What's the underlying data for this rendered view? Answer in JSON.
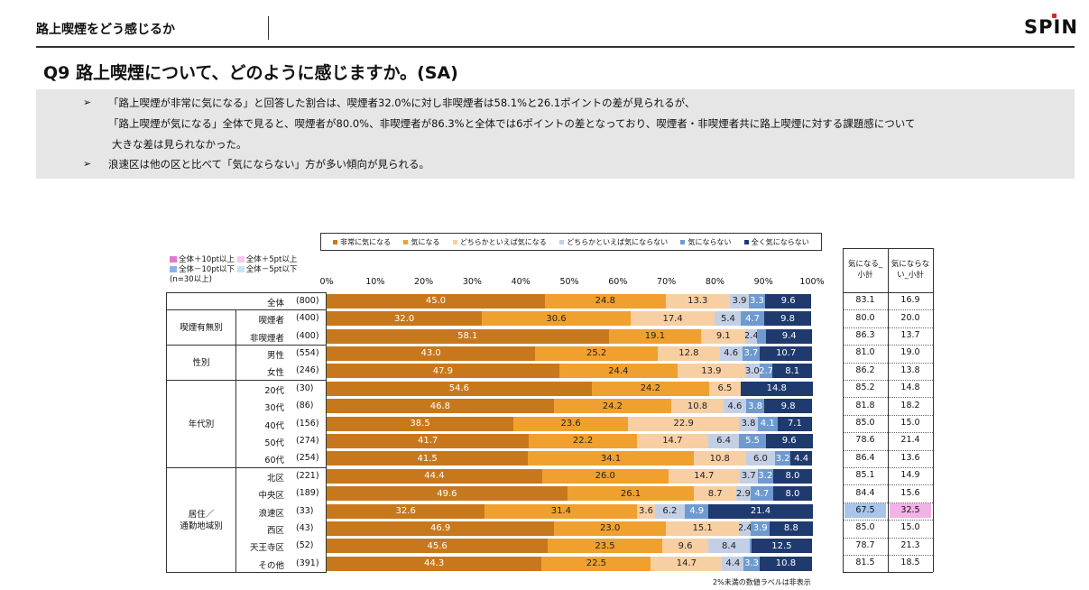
{
  "header": {
    "title": "路上喫煙をどう感じるか",
    "logo": "SPIN"
  },
  "question": "Q9 路上喫煙について、どのように感じますか。(SA)",
  "summary": [
    "「路上喫煙が非常に気になる」と回答した割合は、喫煙者32.0%に対し非喫煙者は58.1%と26.1ポイントの差が見られるが、",
    "「路上喫煙が気になる」全体で見ると、喫煙者が80.0%、非喫煙者が86.3%と全体では6ポイントの差となっており、喫煙者・非喫煙者共に路上喫煙に対する課題感について",
    "大きな差は見られなかった。",
    "浪速区は他の区と比べて「気にならない」方が多い傾向が見られる。"
  ],
  "key": {
    "plus10": "全体＋10pt以上",
    "plus5": "全体＋5pt以上",
    "minus10": "全体－10pt以下",
    "minus5": "全体－5pt以下",
    "note": "(n=30以上)"
  },
  "colors": {
    "c1": "#c8781c",
    "c2": "#f0a02e",
    "c3": "#f8cfa2",
    "c4": "#c3cfe4",
    "c5": "#6e9ad0",
    "c6": "#1f3a6e",
    "hi_blue": "#a9c6ea",
    "hi_pink": "#f3b2e6"
  },
  "subtotal_headers": [
    "気になる_小計",
    "気にならない_小計"
  ],
  "footnote": "2%未満の数値ラベルは非表示",
  "chart_data": {
    "type": "bar",
    "orientation": "horizontal-stacked-100",
    "series_names": [
      "非常に気になる",
      "気になる",
      "どちらかといえば気になる",
      "どちらかといえば気にならない",
      "気にならない",
      "全く気にならない"
    ],
    "x_ticks": [
      "0%",
      "10%",
      "20%",
      "30%",
      "40%",
      "50%",
      "60%",
      "70%",
      "80%",
      "90%",
      "100%"
    ],
    "rows": [
      {
        "group": "",
        "label": "全体",
        "n": "(800)",
        "values": [
          45.0,
          24.8,
          13.3,
          3.9,
          3.3,
          9.6
        ],
        "labels": [
          "45.0",
          "24.8",
          "13.3",
          "3.9",
          "3.3",
          "9.6"
        ],
        "sub": [
          "83.1",
          "16.9"
        ]
      },
      {
        "group": "喫煙有無別",
        "label": "喫煙者",
        "n": "(400)",
        "values": [
          32.0,
          30.6,
          17.4,
          5.4,
          4.7,
          9.8
        ],
        "labels": [
          "32.0",
          "30.6",
          "17.4",
          "5.4",
          "4.7",
          "9.8"
        ],
        "sub": [
          "80.0",
          "20.0"
        ]
      },
      {
        "group": "喫煙有無別",
        "label": "非喫煙者",
        "n": "(400)",
        "values": [
          58.1,
          19.1,
          9.1,
          2.4,
          1.9,
          9.4
        ],
        "labels": [
          "58.1",
          "19.1",
          "9.1",
          "2.4",
          "",
          "9.4"
        ],
        "sub": [
          "86.3",
          "13.7"
        ]
      },
      {
        "group": "性別",
        "label": "男性",
        "n": "(554)",
        "values": [
          43.0,
          25.2,
          12.8,
          4.6,
          3.7,
          10.7
        ],
        "labels": [
          "43.0",
          "25.2",
          "12.8",
          "4.6",
          "3.7",
          "10.7"
        ],
        "sub": [
          "81.0",
          "19.0"
        ]
      },
      {
        "group": "性別",
        "label": "女性",
        "n": "(246)",
        "values": [
          47.9,
          24.4,
          13.9,
          3.0,
          2.7,
          8.1
        ],
        "labels": [
          "47.9",
          "24.4",
          "13.9",
          "3.0",
          "2.7",
          "8.1"
        ],
        "sub": [
          "86.2",
          "13.8"
        ]
      },
      {
        "group": "年代別",
        "label": "20代",
        "n": "(30)",
        "values": [
          54.6,
          24.2,
          6.5,
          0.0,
          0.0,
          14.8
        ],
        "labels": [
          "54.6",
          "24.2",
          "6.5",
          "",
          "",
          "14.8"
        ],
        "sub": [
          "85.2",
          "14.8"
        ]
      },
      {
        "group": "年代別",
        "label": "30代",
        "n": "(86)",
        "values": [
          46.8,
          24.2,
          10.8,
          4.6,
          3.8,
          9.8
        ],
        "labels": [
          "46.8",
          "24.2",
          "10.8",
          "4.6",
          "3.8",
          "9.8"
        ],
        "sub": [
          "81.8",
          "18.2"
        ]
      },
      {
        "group": "年代別",
        "label": "40代",
        "n": "(156)",
        "values": [
          38.5,
          23.6,
          22.9,
          3.8,
          4.1,
          7.1
        ],
        "labels": [
          "38.5",
          "23.6",
          "22.9",
          "3.8",
          "4.1",
          "7.1"
        ],
        "sub": [
          "85.0",
          "15.0"
        ]
      },
      {
        "group": "年代別",
        "label": "50代",
        "n": "(274)",
        "values": [
          41.7,
          22.2,
          14.7,
          6.4,
          5.5,
          9.6
        ],
        "labels": [
          "41.7",
          "22.2",
          "14.7",
          "6.4",
          "5.5",
          "9.6"
        ],
        "sub": [
          "78.6",
          "21.4"
        ]
      },
      {
        "group": "年代別",
        "label": "60代",
        "n": "(254)",
        "values": [
          41.5,
          34.1,
          10.8,
          6.0,
          3.2,
          4.4
        ],
        "labels": [
          "41.5",
          "34.1",
          "10.8",
          "6.0",
          "3.2",
          "4.4"
        ],
        "sub": [
          "86.4",
          "13.6"
        ]
      },
      {
        "group": "居住／通勤地域別",
        "label": "北区",
        "n": "(221)",
        "values": [
          44.4,
          26.0,
          14.7,
          3.7,
          3.2,
          8.0
        ],
        "labels": [
          "44.4",
          "26.0",
          "14.7",
          "3.7",
          "3.2",
          "8.0"
        ],
        "sub": [
          "85.1",
          "14.9"
        ]
      },
      {
        "group": "居住／通勤地域別",
        "label": "中央区",
        "n": "(189)",
        "values": [
          49.6,
          26.1,
          8.7,
          2.9,
          4.7,
          8.0
        ],
        "labels": [
          "49.6",
          "26.1",
          "8.7",
          "2.9",
          "4.7",
          "8.0"
        ],
        "sub": [
          "84.4",
          "15.6"
        ]
      },
      {
        "group": "居住／通勤地域別",
        "label": "浪速区",
        "n": "(33)",
        "values": [
          32.6,
          31.4,
          3.6,
          6.2,
          4.9,
          21.4
        ],
        "labels": [
          "32.6",
          "31.4",
          "3.6",
          "6.2",
          "4.9",
          "21.4"
        ],
        "sub": [
          "67.5",
          "32.5"
        ],
        "highlight": [
          "hi_blue",
          "hi_pink"
        ]
      },
      {
        "group": "居住／通勤地域別",
        "label": "西区",
        "n": "(43)",
        "values": [
          46.9,
          23.0,
          15.1,
          2.4,
          3.9,
          8.8
        ],
        "labels": [
          "46.9",
          "23.0",
          "15.1",
          "2.4",
          "3.9",
          "8.8"
        ],
        "sub": [
          "85.0",
          "15.0"
        ]
      },
      {
        "group": "居住／通勤地域別",
        "label": "天王寺区",
        "n": "(52)",
        "values": [
          45.6,
          23.5,
          9.6,
          8.4,
          0.4,
          12.5
        ],
        "labels": [
          "45.6",
          "23.5",
          "9.6",
          "8.4",
          "",
          "12.5"
        ],
        "sub": [
          "78.7",
          "21.3"
        ]
      },
      {
        "group": "居住／通勤地域別",
        "label": "その他",
        "n": "(391)",
        "values": [
          44.3,
          22.5,
          14.7,
          4.4,
          3.3,
          10.8
        ],
        "labels": [
          "44.3",
          "22.5",
          "14.7",
          "4.4",
          "3.3",
          "10.8"
        ],
        "sub": [
          "81.5",
          "18.5"
        ]
      }
    ]
  }
}
